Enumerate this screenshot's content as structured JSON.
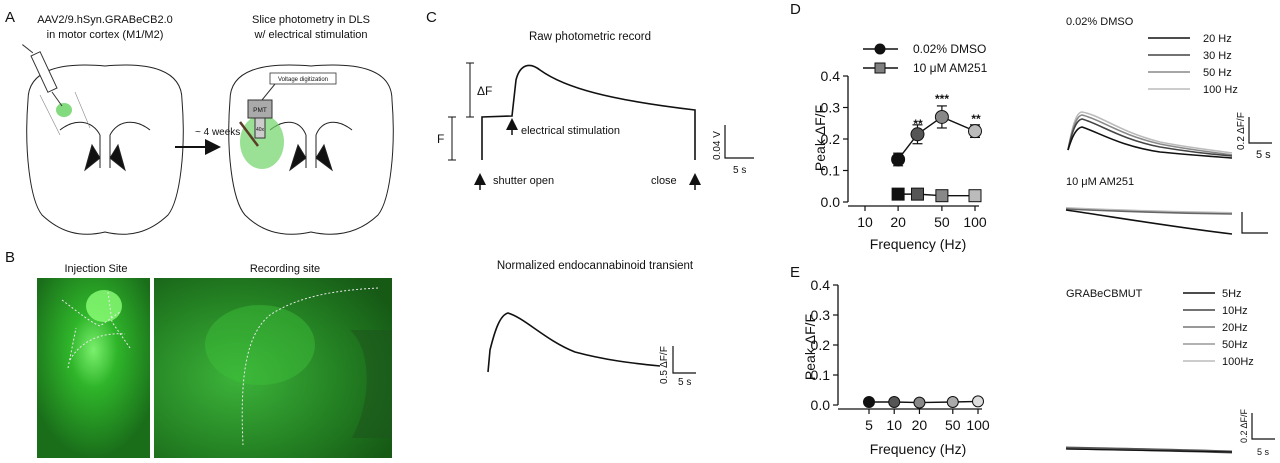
{
  "panels": {
    "A": "A",
    "B": "B",
    "C": "C",
    "D": "D",
    "E": "E"
  },
  "panel_a": {
    "left_title": [
      "AAV2/9.hSyn.GRABeCB2.0",
      "in motor cortex (M1/M2)"
    ],
    "right_title": [
      "Slice photometry in DLS",
      "w/ electrical stimulation"
    ],
    "arrow_label": "~ 4 weeks",
    "device_label": "Voltage digitization",
    "pmt_label": "PMT",
    "objective_label": "40x"
  },
  "panel_b": {
    "injection_label": "Injection Site",
    "recording_label": "Recording site"
  },
  "panel_c": {
    "raw_title": "Raw photometric record",
    "delta_f": "ΔF",
    "f_label": "F",
    "stim_label": "electrical stimulation",
    "shutter_label": "shutter open",
    "close_label": "close",
    "raw_scale_v": "0.04 V",
    "raw_scale_t": "5 s",
    "norm_title": "Normalized endocannabinoid transient",
    "norm_scale_v": "0.5 ΔF/F",
    "norm_scale_t": "5 s"
  },
  "panel_d": {
    "ylabel": "Peak ΔF/F",
    "xlabel": "Frequency (Hz)",
    "y_ticks": [
      "0.0",
      "0.1",
      "0.2",
      "0.3",
      "0.4"
    ],
    "x_ticks": [
      "10",
      "20",
      "50",
      "100"
    ],
    "legend": [
      "0.02% DMSO",
      "10 μM AM251"
    ],
    "significance": [
      "**",
      "***",
      "**"
    ],
    "traces_dmso_title": "0.02% DMSO",
    "traces_am251_title": "10 μM AM251",
    "traces_legend": [
      "20 Hz",
      "30 Hz",
      "50 Hz",
      "100 Hz"
    ],
    "trace_scale_v": "0.2 ΔF/F",
    "trace_scale_t": "5 s"
  },
  "panel_e": {
    "ylabel": "Peak ΔF/F",
    "xlabel": "Frequency (Hz)",
    "y_ticks": [
      "0.0",
      "0.1",
      "0.2",
      "0.3",
      "0.4"
    ],
    "x_ticks": [
      "5",
      "10",
      "20",
      "50",
      "100"
    ],
    "traces_title": "GRABeCBMUT",
    "traces_legend": [
      "5Hz",
      "10Hz",
      "20Hz",
      "50Hz",
      "100Hz"
    ],
    "trace_scale_v": "0.2 ΔF/F",
    "trace_scale_t": "5 s"
  },
  "colors": {
    "fluor_green": "#2fa52b",
    "dmso": "#111111",
    "am251": "#808080"
  },
  "chart_data": [
    {
      "type": "scatter",
      "id": "D",
      "xlabel": "Frequency (Hz)",
      "ylabel": "Peak ΔF/F",
      "xscale": "log",
      "xlim": [
        10,
        100
      ],
      "ylim": [
        0,
        0.4
      ],
      "series": [
        {
          "name": "0.02% DMSO",
          "x": [
            20,
            30,
            50,
            100
          ],
          "y": [
            0.135,
            0.215,
            0.27,
            0.225
          ],
          "err": [
            0.02,
            0.03,
            0.035,
            0.02
          ]
        },
        {
          "name": "10 μM AM251",
          "x": [
            20,
            30,
            50,
            100
          ],
          "y": [
            0.025,
            0.025,
            0.02,
            0.02
          ],
          "err": [
            0,
            0,
            0,
            0
          ]
        }
      ]
    },
    {
      "type": "scatter",
      "id": "E",
      "xlabel": "Frequency (Hz)",
      "ylabel": "Peak ΔF/F",
      "xscale": "log",
      "xlim": [
        5,
        100
      ],
      "ylim": [
        0,
        0.4
      ],
      "series": [
        {
          "x": [
            5,
            10,
            20,
            50,
            100
          ],
          "y": [
            0.01,
            0.01,
            0.008,
            0.01,
            0.012
          ]
        }
      ]
    }
  ]
}
